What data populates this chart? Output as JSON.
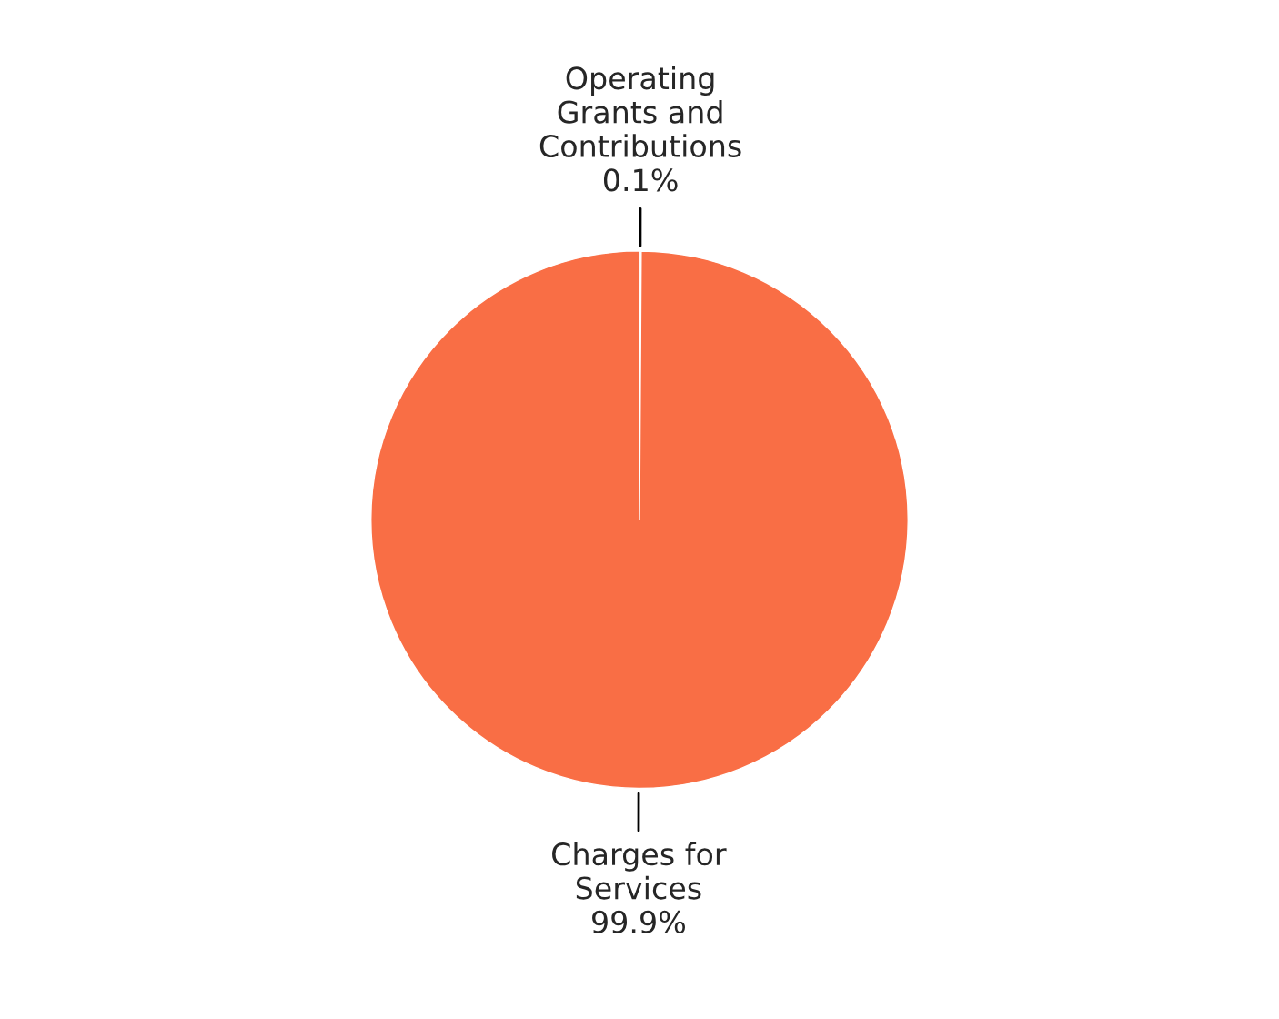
{
  "chart_data": {
    "type": "pie",
    "categories": [
      "Operating Grants and Contributions",
      "Charges for Services"
    ],
    "values": [
      0.1,
      99.9
    ],
    "value_labels": [
      "0.1%",
      "99.9%"
    ],
    "colors": [
      "#f7a88c",
      "#f96e45"
    ]
  }
}
